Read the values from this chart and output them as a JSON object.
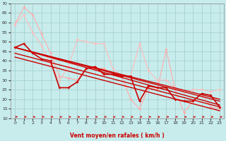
{
  "xlabel": "Vent moyen/en rafales ( km/h )",
  "xlim": [
    -0.5,
    23.5
  ],
  "ylim": [
    10,
    70
  ],
  "yticks": [
    10,
    15,
    20,
    25,
    30,
    35,
    40,
    45,
    50,
    55,
    60,
    65,
    70
  ],
  "xticks": [
    0,
    1,
    2,
    3,
    4,
    5,
    6,
    7,
    8,
    9,
    10,
    11,
    12,
    13,
    14,
    15,
    16,
    17,
    18,
    19,
    20,
    21,
    22,
    23
  ],
  "bg_color": "#c8ecec",
  "grid_color": "#a0cccc",
  "spine_color": "#cc0000",
  "series": [
    {
      "x": [
        0,
        1,
        2,
        3,
        4,
        5,
        6,
        7,
        8,
        9,
        10,
        11,
        12,
        13,
        14,
        15,
        16,
        17,
        18,
        19,
        20,
        21,
        22,
        23
      ],
      "y": [
        59,
        68,
        64,
        54,
        44,
        32,
        31,
        30,
        36,
        36,
        36,
        33,
        32,
        20,
        15,
        26,
        25,
        46,
        25,
        13,
        19,
        23,
        16,
        15
      ],
      "color": "#ffaaaa",
      "lw": 0.8,
      "marker": "D",
      "ms": 2.0,
      "zorder": 2
    },
    {
      "x": [
        0,
        1,
        2,
        3,
        4,
        5,
        6,
        7,
        8,
        9,
        10,
        11,
        12,
        13,
        14,
        15,
        16,
        17,
        18,
        19,
        20,
        21,
        22,
        23
      ],
      "y": [
        59,
        64,
        55,
        48,
        38,
        30,
        37,
        51,
        50,
        49,
        49,
        36,
        32,
        32,
        49,
        35,
        30,
        30,
        26,
        24,
        25,
        25,
        24,
        25
      ],
      "color": "#ffbbbb",
      "lw": 0.8,
      "marker": "D",
      "ms": 2.0,
      "zorder": 2
    },
    {
      "x": [
        0,
        1,
        2,
        3,
        4,
        5,
        6,
        7,
        8,
        9,
        10,
        11,
        12,
        13,
        14,
        15,
        16,
        17,
        18,
        19,
        20,
        21,
        22,
        23
      ],
      "y": [
        47,
        49,
        44,
        41,
        40,
        26,
        26,
        29,
        36,
        37,
        33,
        33,
        32,
        32,
        19,
        27,
        26,
        26,
        20,
        19,
        19,
        23,
        22,
        16
      ],
      "color": "#cc0000",
      "lw": 1.2,
      "marker": "D",
      "ms": 2.0,
      "zorder": 4
    },
    {
      "x": [
        0,
        23
      ],
      "y": [
        47,
        17
      ],
      "color": "#cc0000",
      "lw": 1.0,
      "marker": null,
      "ms": 0,
      "zorder": 3
    },
    {
      "x": [
        0,
        23
      ],
      "y": [
        47,
        19
      ],
      "color": "#cc0000",
      "lw": 1.0,
      "marker": null,
      "ms": 0,
      "zorder": 3
    },
    {
      "x": [
        0,
        23
      ],
      "y": [
        47,
        20
      ],
      "color": "#cc0000",
      "lw": 1.0,
      "marker": null,
      "ms": 0,
      "zorder": 3
    },
    {
      "x": [
        0,
        23
      ],
      "y": [
        44,
        16
      ],
      "color": "#cc0000",
      "lw": 1.0,
      "marker": null,
      "ms": 0,
      "zorder": 3
    },
    {
      "x": [
        0,
        23
      ],
      "y": [
        42,
        14
      ],
      "color": "#cc0000",
      "lw": 1.0,
      "marker": null,
      "ms": 0,
      "zorder": 3
    }
  ]
}
